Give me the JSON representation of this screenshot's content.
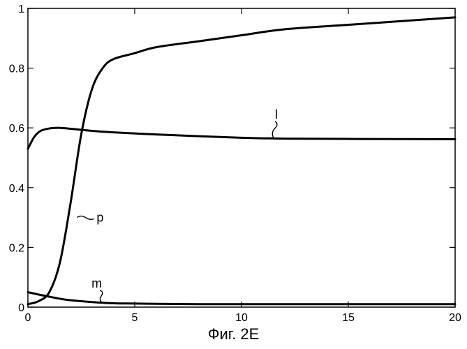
{
  "caption": "Фиг. 2Е",
  "chart_data": {
    "type": "line",
    "title": "",
    "xlabel": "",
    "ylabel": "",
    "xlim": [
      0,
      20
    ],
    "ylim": [
      0,
      1
    ],
    "x_ticks": [
      0,
      5,
      10,
      15,
      20
    ],
    "x_tick_labels": [
      "0",
      "5",
      "10",
      "15",
      "20"
    ],
    "y_ticks": [
      0,
      0.2,
      0.4,
      0.6,
      0.8,
      1
    ],
    "y_tick_labels": [
      "0",
      "0.2",
      "0.4",
      "0.6",
      "0.8",
      "1"
    ],
    "grid": false,
    "series": [
      {
        "name": "p",
        "x": [
          0,
          0.5,
          1,
          1.5,
          2,
          2.5,
          3,
          3.5,
          4,
          5,
          6,
          8,
          10,
          12,
          15,
          18,
          20
        ],
        "y": [
          0.01,
          0.02,
          0.05,
          0.15,
          0.35,
          0.58,
          0.73,
          0.8,
          0.83,
          0.85,
          0.87,
          0.89,
          0.91,
          0.93,
          0.945,
          0.96,
          0.97
        ]
      },
      {
        "name": "l",
        "x": [
          0,
          0.3,
          0.6,
          1,
          1.5,
          2,
          3,
          4,
          6,
          8,
          10,
          12,
          15,
          20
        ],
        "y": [
          0.53,
          0.57,
          0.59,
          0.598,
          0.6,
          0.597,
          0.59,
          0.585,
          0.578,
          0.572,
          0.567,
          0.564,
          0.563,
          0.562
        ]
      },
      {
        "name": "m",
        "x": [
          0,
          0.5,
          1,
          1.5,
          2,
          3,
          4,
          5,
          6,
          8,
          10,
          15,
          20
        ],
        "y": [
          0.05,
          0.042,
          0.035,
          0.028,
          0.023,
          0.017,
          0.013,
          0.012,
          0.011,
          0.01,
          0.01,
          0.01,
          0.01
        ]
      }
    ],
    "curve_labels": [
      {
        "series": "p",
        "text": "p",
        "anchor_x": 2.3,
        "anchor_y": 0.3,
        "label_x": 3.0,
        "label_y": 0.28
      },
      {
        "series": "l",
        "text": "l",
        "anchor_x": 11.5,
        "anchor_y": 0.566,
        "label_x": 11.7,
        "label_y": 0.64
      },
      {
        "series": "m",
        "text": "m",
        "anchor_x": 3.5,
        "anchor_y": 0.014,
        "label_x": 3.3,
        "label_y": 0.09
      }
    ]
  }
}
